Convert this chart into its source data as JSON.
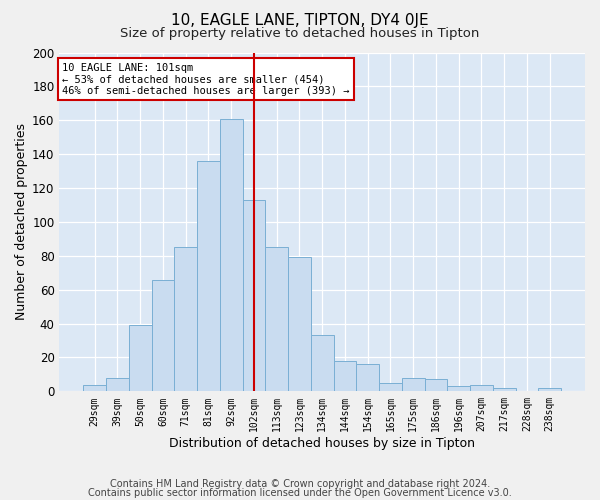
{
  "title1": "10, EAGLE LANE, TIPTON, DY4 0JE",
  "title2": "Size of property relative to detached houses in Tipton",
  "xlabel": "Distribution of detached houses by size in Tipton",
  "ylabel": "Number of detached properties",
  "categories": [
    "29sqm",
    "39sqm",
    "50sqm",
    "60sqm",
    "71sqm",
    "81sqm",
    "92sqm",
    "102sqm",
    "113sqm",
    "123sqm",
    "134sqm",
    "144sqm",
    "154sqm",
    "165sqm",
    "175sqm",
    "186sqm",
    "196sqm",
    "207sqm",
    "217sqm",
    "228sqm",
    "238sqm"
  ],
  "values": [
    4,
    8,
    39,
    66,
    85,
    136,
    161,
    113,
    85,
    79,
    33,
    18,
    16,
    5,
    8,
    7,
    3,
    4,
    2,
    0,
    2
  ],
  "bar_color": "#c9dcf0",
  "bar_edge_color": "#7aafd4",
  "vline_x_index": 7,
  "vline_color": "#cc0000",
  "ylim": [
    0,
    200
  ],
  "yticks": [
    0,
    20,
    40,
    60,
    80,
    100,
    120,
    140,
    160,
    180,
    200
  ],
  "annotation_line1": "10 EAGLE LANE: 101sqm",
  "annotation_line2": "← 53% of detached houses are smaller (454)",
  "annotation_line3": "46% of semi-detached houses are larger (393) →",
  "annotation_box_color": "#ffffff",
  "annotation_box_edge": "#cc0000",
  "footnote1": "Contains HM Land Registry data © Crown copyright and database right 2024.",
  "footnote2": "Contains public sector information licensed under the Open Government Licence v3.0.",
  "bg_color": "#dce8f5",
  "grid_color": "#ffffff",
  "fig_bg_color": "#f0f0f0"
}
